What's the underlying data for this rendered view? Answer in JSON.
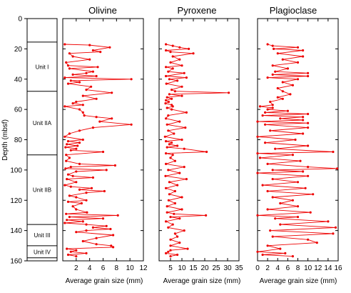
{
  "chart_data": {
    "type": "line",
    "ylabel": "Depth (mbsf)",
    "ylim": [
      160,
      0
    ],
    "y_ticks": [
      0,
      20,
      40,
      60,
      80,
      100,
      120,
      140,
      160
    ],
    "units": [
      {
        "name": "Unit I",
        "top": 15.5,
        "bottom": 48
      },
      {
        "name": "Unit IIA",
        "top": 48,
        "bottom": 90
      },
      {
        "name": "Unit IIB",
        "top": 90,
        "bottom": 136
      },
      {
        "name": "Unit III",
        "top": 136,
        "bottom": 150
      },
      {
        "name": "Unit IV",
        "top": 150,
        "bottom": 158
      }
    ],
    "panels": [
      {
        "title": "Olivine",
        "xlabel": "Average grain size (mm)",
        "xlim": [
          0,
          12
        ],
        "x_ticks": [
          2,
          4,
          6,
          8,
          10,
          12
        ],
        "depth": [
          17,
          17.5,
          19,
          21,
          22,
          23,
          25,
          27,
          29,
          31,
          32,
          33,
          35,
          36,
          37,
          38,
          39,
          40,
          41,
          42,
          43,
          45,
          47,
          49,
          51,
          53,
          55,
          56,
          57,
          58,
          60,
          62,
          64,
          65,
          66,
          68,
          70,
          72,
          74,
          76,
          78,
          80,
          81,
          82,
          83,
          84,
          85,
          86,
          87,
          88,
          90,
          92,
          94,
          96,
          97,
          98,
          99,
          100,
          101,
          103,
          104,
          105,
          106,
          108,
          110,
          111,
          112,
          113,
          114,
          115,
          117,
          118,
          120,
          121,
          122,
          124,
          126,
          128,
          129,
          130,
          131,
          132,
          133,
          134,
          135,
          136,
          137,
          138,
          139,
          140,
          141,
          143,
          145,
          147,
          149,
          150,
          151,
          152,
          153,
          154,
          155,
          156,
          157
        ],
        "values": [
          0.3,
          4,
          7,
          4.5,
          5.6,
          1,
          1.5,
          4,
          0.5,
          0.8,
          5.2,
          1,
          4.5,
          3.5,
          1.5,
          5,
          0.3,
          10.2,
          1.2,
          2.5,
          0.8,
          4.2,
          3.5,
          7.3,
          3,
          5,
          2,
          1.5,
          3,
          0.3,
          2.5,
          3,
          3.2,
          5,
          7.3,
          5.5,
          10.2,
          4.5,
          2.5,
          1,
          0.3,
          3,
          0.8,
          2.5,
          0.6,
          2.2,
          0.4,
          2,
          1.2,
          6,
          0.5,
          1,
          0.5,
          2.5,
          7.8,
          1.2,
          0.4,
          6.5,
          2,
          0.8,
          1.5,
          4.5,
          0.6,
          2,
          0.3,
          1.2,
          4.3,
          2.5,
          6.2,
          3.5,
          1,
          2,
          3.5,
          0.8,
          2.8,
          1.5,
          2,
          3.6,
          0.5,
          8.2,
          1,
          6,
          0.6,
          3,
          0.3,
          3.5,
          6.5,
          4.5,
          7.1,
          3.5,
          2,
          7.5,
          5,
          3,
          5,
          7.2,
          7.5,
          0.6,
          2,
          1.2,
          3.5,
          0.8,
          2
        ]
      },
      {
        "title": "Pyroxene",
        "xlabel": "Average grain size (mm)",
        "xlim": [
          0,
          35
        ],
        "x_ticks": [
          5,
          10,
          15,
          20,
          25,
          30,
          35
        ],
        "depth": [
          17,
          18,
          19,
          20,
          21,
          22,
          23,
          25,
          27,
          29,
          31,
          32,
          33,
          35,
          36,
          38,
          39,
          40,
          41,
          43,
          45,
          47,
          48,
          49,
          50,
          51,
          52,
          53,
          54,
          55,
          56,
          57,
          58,
          59,
          60,
          62,
          64,
          66,
          68,
          70,
          72,
          74,
          76,
          78,
          80,
          81,
          82,
          83,
          84,
          85,
          86,
          88,
          89,
          90,
          92,
          94,
          96,
          98,
          100,
          102,
          104,
          106,
          108,
          110,
          112,
          114,
          116,
          118,
          120,
          122,
          124,
          126,
          128,
          129,
          130,
          131,
          132,
          134,
          136,
          138,
          140,
          142,
          144,
          146,
          148,
          150,
          152,
          153,
          154,
          155,
          156,
          157
        ],
        "values": [
          3,
          6,
          9,
          13,
          3,
          5,
          15,
          6,
          9,
          5,
          10,
          3,
          6,
          4,
          11,
          3,
          12,
          4.5,
          8,
          3.2,
          10,
          5.5,
          7,
          30.5,
          4.5,
          10,
          3.5,
          5.5,
          3,
          4.2,
          2.8,
          5.5,
          6,
          3.5,
          5.5,
          12,
          4,
          3,
          9,
          3.5,
          11.5,
          4,
          6.5,
          2.6,
          10,
          3,
          5.5,
          4.5,
          8,
          3.5,
          11,
          20.8,
          3,
          6,
          5,
          7,
          3,
          11,
          4,
          9,
          2.8,
          12,
          4.5,
          8,
          3,
          7,
          4.5,
          10,
          4.2,
          7,
          3.5,
          10,
          3.5,
          6.5,
          20.5,
          5,
          9,
          3,
          6,
          4,
          11,
          7,
          8,
          5,
          9,
          5,
          12.5,
          5,
          4,
          3,
          8,
          5
        ]
      },
      {
        "title": "Plagioclase",
        "xlabel": "Average grain size (mm)",
        "xlim": [
          0,
          16
        ],
        "x_ticks": [
          0,
          2,
          4,
          6,
          8,
          10,
          12,
          14,
          16
        ],
        "depth": [
          17,
          18,
          19,
          20,
          21,
          23,
          25,
          27,
          29,
          31,
          33,
          35,
          36,
          37,
          38,
          39,
          40,
          42,
          44,
          46,
          48,
          50,
          52,
          53,
          55,
          57,
          58,
          59,
          60,
          61,
          62,
          63,
          64,
          65,
          66,
          67,
          68,
          69,
          70,
          72,
          74,
          76,
          78,
          80,
          82,
          84,
          86,
          88,
          89,
          90,
          92,
          94,
          96,
          98,
          99,
          100,
          101,
          102,
          104,
          106,
          108,
          110,
          112,
          114,
          116,
          118,
          120,
          122,
          124,
          126,
          128,
          130,
          131,
          132,
          134,
          136,
          138,
          140,
          142,
          144,
          146,
          148,
          150,
          152,
          154,
          155,
          156,
          157
        ],
        "values": [
          2,
          3,
          8,
          3.2,
          9,
          4,
          9,
          5,
          8,
          3,
          6,
          3.5,
          10,
          3,
          10,
          2,
          8,
          5,
          7,
          4,
          5,
          6.5,
          4,
          5,
          2.5,
          3,
          0.5,
          3,
          2,
          6,
          1.5,
          10,
          1,
          9,
          4.5,
          9,
          0,
          10,
          1.5,
          10,
          2.5,
          9,
          0,
          7.5,
          1.5,
          10,
          3.5,
          15,
          0,
          7,
          0.5,
          8.5,
          2,
          10,
          15.8,
          3,
          9,
          0,
          10,
          3,
          8,
          1,
          9.5,
          2,
          11,
          3,
          7,
          4.5,
          8,
          2,
          10.5,
          0,
          8,
          3.5,
          14,
          4.5,
          15.5,
          2.5,
          15,
          3,
          10,
          11.8,
          2,
          4.5,
          0,
          5.5,
          1,
          7
        ]
      }
    ]
  }
}
